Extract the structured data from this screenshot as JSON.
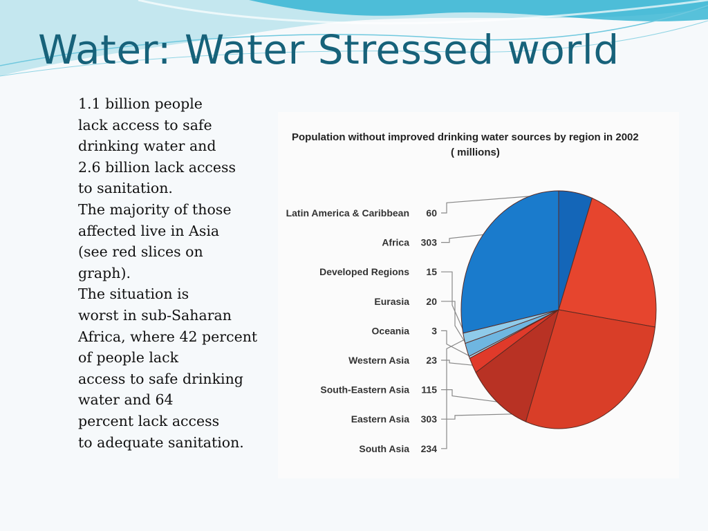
{
  "slide": {
    "title": "Water: Water Stressed world",
    "body_lines": [
      "1.1 billion people",
      "lack access to safe",
      "drinking water and",
      "2.6 billion lack access",
      "to sanitation.",
      "The majority of those",
      "affected live in Asia",
      "(see red slices on",
      "graph).",
      "The situation is",
      "worst in sub-Saharan",
      "Africa, where 42 percent",
      "of people lack",
      "access to safe drinking",
      "water and 64",
      "percent lack access",
      "to adequate sanitation."
    ],
    "theme_colors": {
      "title": "#17627a",
      "wave": "#5bbfd6"
    }
  },
  "chart_data": {
    "type": "pie",
    "title_lines": [
      "Population without improved drinking water sources by region in 2002",
      "( millions)"
    ],
    "categories": [
      "Latin America & Caribbean",
      "Africa",
      "Developed Regions",
      "Eurasia",
      "Oceania",
      "Western Asia",
      "South-Eastern Asia",
      "Eastern Asia",
      "South Asia"
    ],
    "values": [
      60,
      303,
      15,
      20,
      3,
      23,
      115,
      303,
      234
    ],
    "value_labels": [
      "60",
      "303",
      "15",
      "20",
      "3",
      "23",
      "115",
      "303",
      "234"
    ],
    "slice_order": [
      "Latin America & Caribbean",
      "South Asia",
      "Eastern Asia",
      "South-Eastern Asia",
      "Western Asia",
      "Oceania",
      "Eurasia",
      "Developed Regions",
      "Africa"
    ],
    "colors": {
      "Latin America & Caribbean": "#1466b8",
      "Africa": "#1a7bcc",
      "Developed Regions": "#8fcbea",
      "Eurasia": "#6fb6e0",
      "Oceania": "#a6d6ef",
      "Western Asia": "#e03a2a",
      "South-Eastern Asia": "#b83224",
      "Eastern Asia": "#d93e28",
      "South Asia": "#e6452e"
    },
    "start_angle_deg": 90,
    "direction": "clockwise",
    "legend": "left, with leader lines"
  }
}
